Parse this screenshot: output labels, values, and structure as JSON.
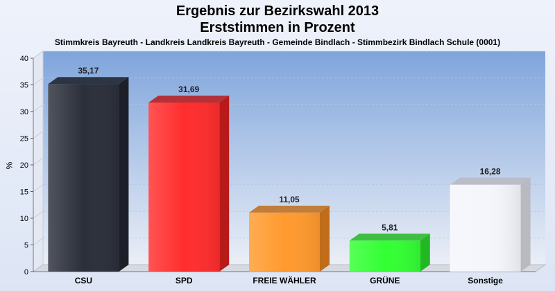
{
  "title": "Ergebnis zur Bezirkswahl 2013",
  "subtitle": "Erststimmen in Prozent",
  "subsubtitle": "Stimmkreis Bayreuth - Landkreis Landkreis Bayreuth - Gemeinde Bindlach - Stimmbezirk Bindlach Schule (0001)",
  "chart_data": {
    "type": "bar",
    "title": "Ergebnis zur Bezirkswahl 2013",
    "subtitle": "Erststimmen in Prozent",
    "ylabel": "%",
    "xlabel": "",
    "ylim": [
      0,
      40
    ],
    "yticks": [
      0,
      5,
      10,
      15,
      20,
      25,
      30,
      35,
      40
    ],
    "grid": true,
    "categories": [
      "CSU",
      "SPD",
      "FREIE WÄHLER",
      "GRÜNE",
      "Sonstige"
    ],
    "values": [
      35.17,
      31.69,
      11.05,
      5.81,
      16.28
    ],
    "value_labels": [
      "35,17",
      "31,69",
      "11,05",
      "5,81",
      "16,28"
    ],
    "colors": [
      "#2b2f3a",
      "#ff2d2d",
      "#ff9a2e",
      "#33ff33",
      "#f4f6fb"
    ],
    "side_colors": [
      "#1c1f27",
      "#b81a1a",
      "#c06c18",
      "#22b822",
      "#b8babf"
    ]
  }
}
